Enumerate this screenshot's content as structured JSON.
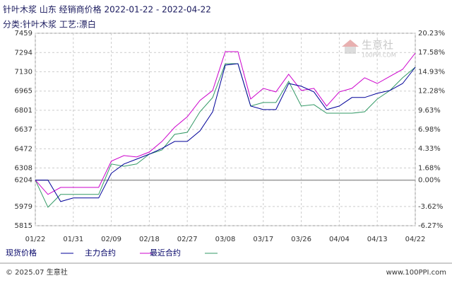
{
  "chart_data": {
    "type": "line",
    "title": "针叶木浆 山东 经销商价格 2022-01-22 - 2022-04-22",
    "subtitle": "分类:针叶木浆 工艺:漂白",
    "watermark": "生意社",
    "watermark_sub": "100PPI.COM",
    "footer_left": "© 2025.07 生意社",
    "footer_right": "www.100PPI.com",
    "categories": [
      "01/22",
      null,
      null,
      "01/31",
      null,
      null,
      "02/09",
      null,
      null,
      "02/18",
      null,
      null,
      "02/27",
      null,
      null,
      "03/08",
      null,
      null,
      "03/17",
      null,
      null,
      "03/26",
      null,
      null,
      "04/04",
      null,
      null,
      "04/13",
      null,
      null,
      "04/22"
    ],
    "series": [
      {
        "name": "现货价格",
        "color": "#000099",
        "values": [
          6204,
          6204,
          6021,
          6052,
          6052,
          6052,
          6263,
          6342,
          6384,
          6426,
          6475,
          6535,
          6535,
          6625,
          6788,
          7187,
          7199,
          6837,
          6807,
          6807,
          7030,
          7006,
          6958,
          6807,
          6837,
          6910,
          6910,
          6946,
          6970,
          7030,
          7169
        ]
      },
      {
        "name": "主力合约",
        "color": "#cc00cc",
        "values": [
          6204,
          6082,
          6142,
          6142,
          6142,
          6142,
          6366,
          6414,
          6402,
          6444,
          6535,
          6656,
          6746,
          6885,
          6970,
          7302,
          7302,
          6897,
          6988,
          6958,
          7109,
          6970,
          6988,
          6837,
          6958,
          6988,
          7079,
          7030,
          7091,
          7151,
          7290
        ]
      },
      {
        "name": "最近合约",
        "color": "#339966",
        "values": [
          6204,
          5973,
          6082,
          6082,
          6082,
          6082,
          6342,
          6323,
          6342,
          6426,
          6462,
          6595,
          6613,
          6788,
          6910,
          7199,
          7199,
          6837,
          6867,
          6867,
          7048,
          6837,
          6849,
          6776,
          6776,
          6776,
          6788,
          6897,
          6970,
          7079,
          7169
        ]
      }
    ],
    "ylim": [
      5815,
      7459
    ],
    "yticks": [
      7459,
      7294,
      7130,
      6965,
      6801,
      6637,
      6472,
      6308,
      6204,
      5979,
      5815
    ],
    "y2lim": [
      -6.27,
      20.23
    ],
    "y2ticks": [
      {
        "value": 20.23,
        "label": "20.23%"
      },
      {
        "value": 17.58,
        "label": "17.58%"
      },
      {
        "value": 14.93,
        "label": "14.93%"
      },
      {
        "value": 12.28,
        "label": "12.28%"
      },
      {
        "value": 9.63,
        "label": "9.63%"
      },
      {
        "value": 6.98,
        "label": "6.98%"
      },
      {
        "value": 4.33,
        "label": "4.33%"
      },
      {
        "value": 1.68,
        "label": "1.68%"
      },
      {
        "value": 0,
        "label": "0.00%"
      },
      {
        "value": -3.62,
        "label": "-3.62%"
      },
      {
        "value": -6.27,
        "label": "-6.27%"
      }
    ],
    "grid": true,
    "legend": "bottom"
  }
}
